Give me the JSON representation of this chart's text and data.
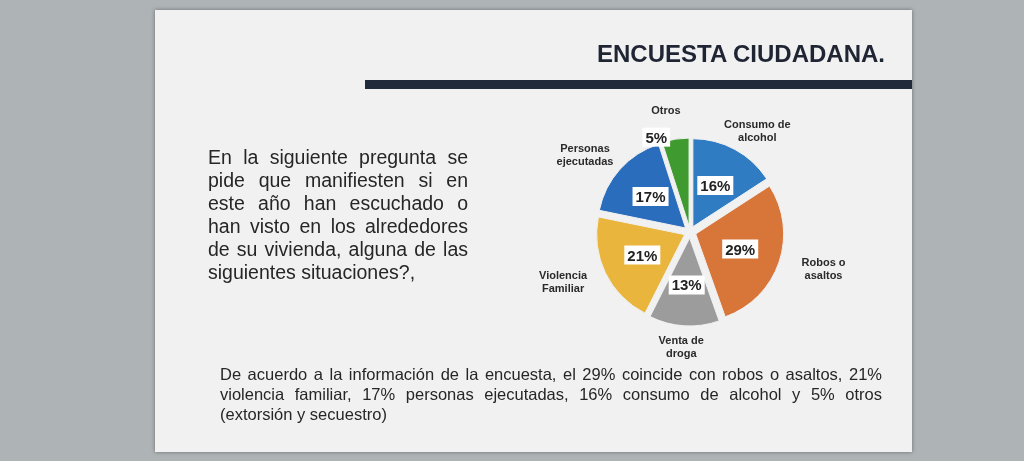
{
  "chart_data": {
    "type": "pie",
    "title": "ENCUESTA CIUDADANA.",
    "categories": [
      "Consumo de alcohol",
      "Robos o asaltos",
      "Venta de droga",
      "Violencia Familiar",
      "Personas ejecutadas",
      "Otros"
    ],
    "values": [
      16,
      29,
      13,
      21,
      17,
      5
    ],
    "value_labels": [
      "16%",
      "29%",
      "13%",
      "21%",
      "17%",
      "5%"
    ],
    "colors": [
      "#2f7cc3",
      "#d8763a",
      "#9c9c9c",
      "#e9b53c",
      "#2b6dbd",
      "#3f9a2f"
    ],
    "annotations": [
      "En la siguiente pregunta se pide que manifiesten si en este año han escuchado o han visto en los alrededores de su vivienda, alguna de las siguientes situaciones?,",
      "De acuerdo a la información de la encuesta, el 29% coincide con robos o asaltos, 21% violencia familiar, 17% personas ejecutadas, 16% consumo de alcohol y 5% otros (extorsión y secuestro)"
    ]
  }
}
